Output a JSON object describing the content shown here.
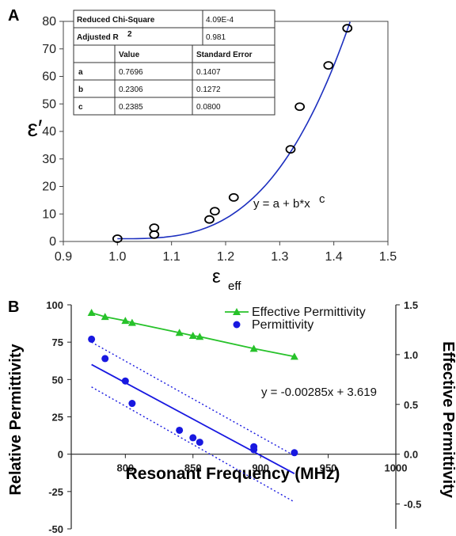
{
  "chart_data": [
    {
      "type": "scatter",
      "panel": "A",
      "ylabel": "ε′",
      "xlabel": "ε",
      "xlabel_sub": "eff",
      "xlim": [
        0.9,
        1.5
      ],
      "ylim": [
        0,
        80
      ],
      "xticks": [
        "0.9",
        "1.0",
        "1.1",
        "1.2",
        "1.3",
        "1.4",
        "1.5"
      ],
      "yticks": [
        "0",
        "10",
        "20",
        "30",
        "40",
        "50",
        "60",
        "70",
        "80"
      ],
      "points": [
        {
          "x": 1.0,
          "y": 1
        },
        {
          "x": 1.068,
          "y": 2.5
        },
        {
          "x": 1.068,
          "y": 5
        },
        {
          "x": 1.17,
          "y": 8
        },
        {
          "x": 1.18,
          "y": 11
        },
        {
          "x": 1.215,
          "y": 16
        },
        {
          "x": 1.32,
          "y": 33.5
        },
        {
          "x": 1.337,
          "y": 49
        },
        {
          "x": 1.39,
          "y": 64
        },
        {
          "x": 1.425,
          "y": 77.5
        }
      ],
      "fit": {
        "equation": "y = a + b*x",
        "equation_sup": "c",
        "color": "#1c2fbf"
      },
      "table": {
        "rows": [
          {
            "label": "Reduced Chi-Square",
            "value": "4.09E-4"
          },
          {
            "label": "Adjusted R",
            "label_sup": "2",
            "value": "0.981"
          }
        ],
        "header": [
          "",
          "Value",
          "Standard Error"
        ],
        "params": [
          {
            "name": "a",
            "value": "0.7696",
            "error": "0.1407"
          },
          {
            "name": "b",
            "value": "0.2306",
            "error": "0.1272"
          },
          {
            "name": "c",
            "value": "0.2385",
            "error": "0.0800"
          }
        ]
      }
    },
    {
      "type": "scatter",
      "panel": "B",
      "xlabel": "Resonant Frequency (MHz)",
      "ylabel": "Relative Permittivity",
      "y2label": "Effective Permittivity",
      "xlim": [
        760,
        1000
      ],
      "ylim": [
        -50,
        100
      ],
      "y2lim": [
        -0.75,
        1.5
      ],
      "xticks": [
        "800",
        "850",
        "900",
        "950",
        "1000"
      ],
      "yticks": [
        "100",
        "75",
        "50",
        "25",
        "0",
        "-25",
        "-50"
      ],
      "y2ticks": [
        "1.5",
        "1.0",
        "0.5",
        "0.0",
        "-0.5"
      ],
      "equation": "y = -0.00285x + 3.619",
      "series": [
        {
          "name": "Effective Permittivity",
          "axis": "right",
          "marker": "triangle",
          "color": "#27c22a",
          "x": [
            775,
            785,
            800,
            805,
            840,
            850,
            855,
            895,
            925
          ],
          "y": [
            1.42,
            1.38,
            1.34,
            1.32,
            1.22,
            1.19,
            1.18,
            1.06,
            0.98
          ]
        },
        {
          "name": "Permittivity",
          "axis": "left",
          "marker": "circle",
          "color": "#1818e0",
          "x": [
            775,
            785,
            800,
            805,
            840,
            850,
            855,
            895,
            895,
            925
          ],
          "y": [
            77,
            64,
            49,
            34,
            16,
            11,
            8,
            5,
            3,
            1
          ]
        }
      ],
      "fit_color": "#1818e0",
      "confidence_band": true
    }
  ]
}
